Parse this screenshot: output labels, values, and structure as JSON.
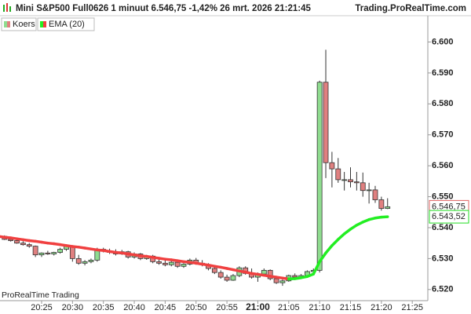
{
  "chart_data": {
    "type": "candlestick",
    "title": "Mini S&P500 Full0626 1 minuut 6.546,75 -1,42% 26 mrt. 2026 21:21:45",
    "source": "Trading.ProRealTime.com",
    "footer": "ProRealTime Trading",
    "x": [
      "20:18",
      "20:19",
      "20:20",
      "20:21",
      "20:22",
      "20:23",
      "20:24",
      "20:25",
      "20:26",
      "20:27",
      "20:28",
      "20:29",
      "20:30",
      "20:31",
      "20:32",
      "20:33",
      "20:34",
      "20:35",
      "20:36",
      "20:37",
      "20:38",
      "20:39",
      "20:40",
      "20:41",
      "20:42",
      "20:43",
      "20:44",
      "20:45",
      "20:46",
      "20:47",
      "20:48",
      "20:49",
      "20:50",
      "20:51",
      "20:52",
      "20:53",
      "20:54",
      "20:55",
      "20:56",
      "20:57",
      "20:58",
      "20:59",
      "21:00",
      "21:01",
      "21:02",
      "21:03",
      "21:04",
      "21:05",
      "21:06",
      "21:07",
      "21:08",
      "21:09",
      "21:10",
      "21:11",
      "21:12",
      "21:13",
      "21:14",
      "21:15",
      "21:16",
      "21:17",
      "21:18",
      "21:19",
      "21:20",
      "21:21"
    ],
    "series": [
      {
        "name": "Koers",
        "up_color": "#8fdc8f",
        "down_color": "#e08080",
        "open": [
          6.537,
          6.5372,
          6.5362,
          6.5358,
          6.535,
          6.5345,
          6.534,
          6.5312,
          6.5318,
          6.5315,
          6.532,
          6.533,
          6.534,
          6.53,
          6.5285,
          6.529,
          6.5295,
          6.533,
          6.5325,
          6.532,
          6.5315,
          6.5322,
          6.5305,
          6.5315,
          6.53,
          6.5308,
          6.529,
          6.5285,
          6.528,
          6.5288,
          6.5275,
          6.5282,
          6.5295,
          6.5285,
          6.528,
          6.5268,
          6.5255,
          6.524,
          6.523,
          6.5245,
          6.527,
          6.5252,
          6.524,
          6.525,
          6.5262,
          6.5235,
          6.5222,
          6.5228,
          6.5245,
          6.524,
          6.5245,
          6.5258,
          6.5262,
          6.587,
          6.561,
          6.559,
          6.5555,
          6.5555,
          6.5548,
          6.5545,
          6.552,
          6.5522,
          6.549,
          6.5462
        ],
        "high": [
          6.5378,
          6.5375,
          6.5368,
          6.5362,
          6.5356,
          6.535,
          6.5342,
          6.532,
          6.5325,
          6.5322,
          6.5335,
          6.5345,
          6.5342,
          6.5312,
          6.5295,
          6.53,
          6.5335,
          6.5335,
          6.5332,
          6.533,
          6.5328,
          6.5325,
          6.532,
          6.5318,
          6.5312,
          6.5312,
          6.53,
          6.5295,
          6.5292,
          6.5292,
          6.5285,
          6.53,
          6.5302,
          6.5295,
          6.5285,
          6.5275,
          6.5262,
          6.5248,
          6.525,
          6.5275,
          6.5275,
          6.5268,
          6.5255,
          6.5268,
          6.5265,
          6.5242,
          6.5232,
          6.5248,
          6.5252,
          6.525,
          6.5262,
          6.5268,
          6.5875,
          6.5975,
          6.5645,
          6.5625,
          6.558,
          6.5595,
          6.558,
          6.5578,
          6.5545,
          6.5535,
          6.55,
          6.5495
        ],
        "low": [
          6.5365,
          6.536,
          6.5355,
          6.5348,
          6.5342,
          6.5335,
          6.5305,
          6.5305,
          6.5312,
          6.531,
          6.5316,
          6.5325,
          6.529,
          6.528,
          6.5278,
          6.5285,
          6.529,
          6.532,
          6.5315,
          6.531,
          6.5312,
          6.53,
          6.53,
          6.5295,
          6.5296,
          6.5285,
          6.528,
          6.5275,
          6.5275,
          6.527,
          6.527,
          6.5278,
          6.528,
          6.5275,
          6.5262,
          6.525,
          6.5235,
          6.5225,
          6.5228,
          6.524,
          6.5248,
          6.5235,
          6.5225,
          6.5245,
          6.523,
          6.5218,
          6.5212,
          6.5225,
          6.5238,
          6.5238,
          6.5242,
          6.525,
          6.5255,
          6.556,
          6.553,
          6.5545,
          6.552,
          6.553,
          6.552,
          6.55,
          6.5478,
          6.548,
          6.5455,
          6.546
        ],
        "close": [
          6.5372,
          6.5362,
          6.5358,
          6.535,
          6.5345,
          6.534,
          6.5312,
          6.5318,
          6.5315,
          6.532,
          6.533,
          6.534,
          6.53,
          6.5285,
          6.529,
          6.5295,
          6.533,
          6.5325,
          6.532,
          6.5315,
          6.5322,
          6.5305,
          6.5315,
          6.53,
          6.5308,
          6.529,
          6.5285,
          6.528,
          6.5288,
          6.5275,
          6.5282,
          6.5295,
          6.5285,
          6.528,
          6.5268,
          6.5255,
          6.524,
          6.523,
          6.5245,
          6.527,
          6.5252,
          6.524,
          6.525,
          6.5262,
          6.5235,
          6.5222,
          6.5228,
          6.5245,
          6.524,
          6.5245,
          6.5258,
          6.5262,
          6.587,
          6.561,
          6.559,
          6.5555,
          6.5555,
          6.5548,
          6.5545,
          6.552,
          6.5522,
          6.549,
          6.5462,
          6.54675
        ]
      },
      {
        "name": "EMA (20)",
        "up_color": "#22ee22",
        "down_color": "#f04040",
        "values": [
          6.5372,
          6.5369,
          6.5367,
          6.5364,
          6.5361,
          6.5358,
          6.5356,
          6.5353,
          6.535,
          6.5348,
          6.5345,
          6.5342,
          6.5339,
          6.5337,
          6.5334,
          6.5331,
          6.5328,
          6.5326,
          6.5323,
          6.532,
          6.5318,
          6.5315,
          6.5312,
          6.5309,
          6.5307,
          6.5304,
          6.5301,
          6.5298,
          6.5296,
          6.5293,
          6.529,
          6.5288,
          6.5285,
          6.5282,
          6.5279,
          6.5275,
          6.5272,
          6.5268,
          6.5264,
          6.526,
          6.5256,
          6.5252,
          6.5249,
          6.5246,
          6.5243,
          6.524,
          6.5237,
          6.5234,
          6.5235,
          6.5238,
          6.5242,
          6.525,
          6.529,
          6.5318,
          6.5342,
          6.5362,
          6.538,
          6.5395,
          6.5408,
          6.5418,
          6.5426,
          6.5431,
          6.5434,
          6.54352
        ]
      }
    ],
    "last_labels": [
      {
        "value": 6.54675,
        "label": "6.546,75",
        "color": "#e06060"
      },
      {
        "value": 6.54352,
        "label": "6.543,52",
        "color": "#22dd22"
      }
    ],
    "ylim": [
      6.5164,
      6.6085
    ],
    "yticks": [
      {
        "value": 6.52,
        "label": "6.520"
      },
      {
        "value": 6.53,
        "label": "6.530"
      },
      {
        "value": 6.54,
        "label": "6.540"
      },
      {
        "value": 6.55,
        "label": "6.550"
      },
      {
        "value": 6.56,
        "label": "6.560"
      },
      {
        "value": 6.57,
        "label": "6.570"
      },
      {
        "value": 6.58,
        "label": "6.580"
      },
      {
        "value": 6.59,
        "label": "6.590"
      },
      {
        "value": 6.6,
        "label": "6.600"
      }
    ],
    "xticks": [
      "20:25",
      "20:30",
      "20:35",
      "20:40",
      "20:45",
      "20:50",
      "20:55",
      "21:00",
      "21:05",
      "21:10",
      "21:15",
      "21:20",
      "21:25"
    ],
    "bold_xtick": "21:00",
    "grid": false
  }
}
